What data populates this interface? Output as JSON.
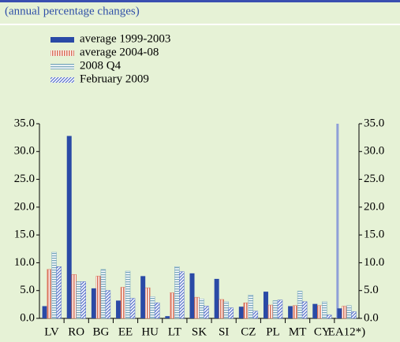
{
  "chart_data": {
    "type": "bar",
    "subtitle": "(annual percentage changes)",
    "categories": [
      "LV",
      "RO",
      "BG",
      "EE",
      "HU",
      "LT",
      "SK",
      "SI",
      "CZ",
      "PL",
      "MT",
      "CY",
      "EA12*)"
    ],
    "series": [
      {
        "name": "average 1999-2003",
        "color": "#2a4aa6",
        "hatch": "solid",
        "values": [
          2.2,
          32.8,
          5.4,
          3.2,
          7.6,
          0.4,
          8.1,
          7.1,
          2.1,
          4.8,
          2.2,
          2.6,
          1.8
        ]
      },
      {
        "name": "average 2004-08",
        "color": "#d9735a",
        "hatch": "vertical",
        "values": [
          8.8,
          7.9,
          7.6,
          5.6,
          5.5,
          4.6,
          3.8,
          3.4,
          2.8,
          2.4,
          2.3,
          2.3,
          2.2
        ]
      },
      {
        "name": "2008 Q4",
        "color": "#7aa8bc",
        "hatch": "horizontal",
        "values": [
          11.9,
          6.6,
          8.8,
          8.5,
          3.9,
          9.3,
          3.5,
          3.0,
          4.2,
          3.2,
          4.9,
          3.0,
          2.3
        ]
      },
      {
        "name": "February 2009",
        "color": "#5a74cc",
        "hatch": "diagonal",
        "values": [
          9.3,
          6.6,
          5.0,
          3.6,
          2.8,
          8.4,
          2.2,
          1.9,
          1.3,
          3.3,
          3.0,
          0.6,
          1.2
        ]
      }
    ],
    "ylim": [
      0,
      35
    ],
    "yticks": [
      {
        "value": 0,
        "label": "0.0"
      },
      {
        "value": 5,
        "label": "5.0"
      },
      {
        "value": 10,
        "label": "10.0"
      },
      {
        "value": 15,
        "label": "15.0"
      },
      {
        "value": 20,
        "label": "20.0"
      },
      {
        "value": 25,
        "label": "25.0"
      },
      {
        "value": 30,
        "label": "30.0"
      },
      {
        "value": 35,
        "label": "35.0"
      }
    ]
  }
}
